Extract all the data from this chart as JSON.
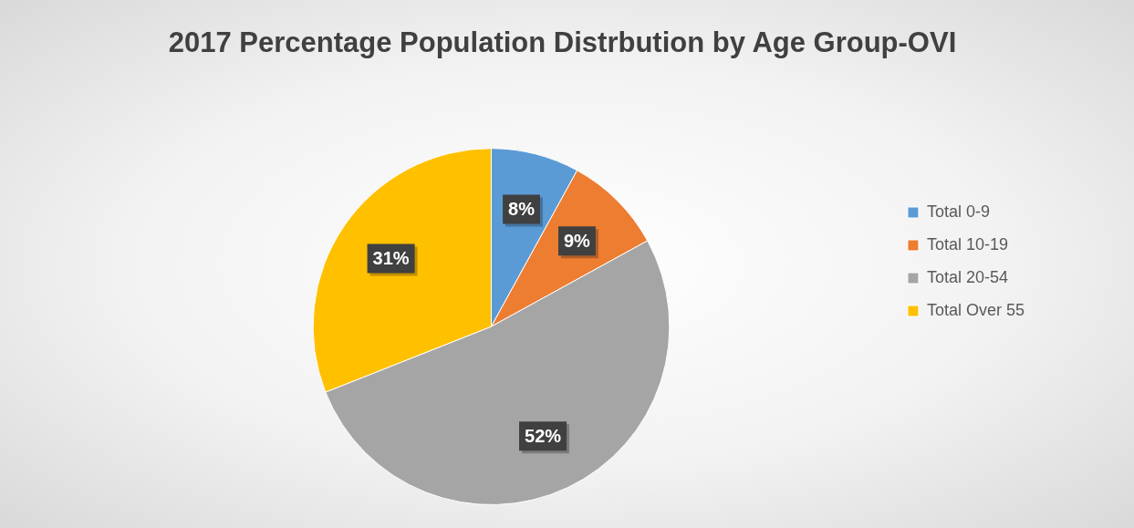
{
  "chart_data": {
    "type": "pie",
    "title": "2017 Percentage Population Distrbution by Age Group-OVI",
    "categories": [
      "Total 0-9",
      "Total 10-19",
      "Total 20-54",
      "Total Over 55"
    ],
    "values": [
      8,
      9,
      52,
      31
    ],
    "value_labels": [
      "8%",
      "9%",
      "52%",
      "31%"
    ],
    "colors": [
      "#5b9bd5",
      "#ed7d31",
      "#a5a5a5",
      "#ffc000"
    ],
    "legend": "right"
  }
}
